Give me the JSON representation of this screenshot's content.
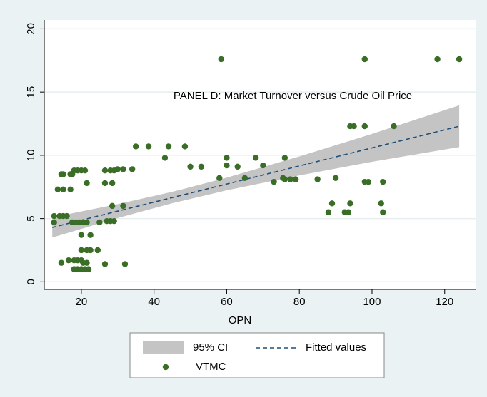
{
  "chart_data": {
    "type": "scatter",
    "annotation": "PANEL D: Market Turnover versus Crude Oil Price",
    "x_label": "OPN",
    "xlim": [
      9.8,
      128.5
    ],
    "ylim": [
      -0.6,
      20.7
    ],
    "xticks": [
      20,
      40,
      60,
      80,
      100,
      120
    ],
    "yticks": [
      0,
      5,
      10,
      15,
      20
    ],
    "grid": true,
    "series": [
      {
        "name": "95% CI",
        "kind": "band",
        "color": "#c4c4c4",
        "x": [
          12,
          30,
          45,
          60,
          80,
          100,
          124
        ],
        "upper": [
          5.1,
          6.14,
          7.11,
          8.23,
          9.91,
          11.69,
          13.95
        ],
        "lower": [
          3.5,
          5.04,
          6.21,
          7.23,
          8.41,
          9.49,
          10.65
        ]
      },
      {
        "name": "Fitted values",
        "kind": "line",
        "color": "#1f4e79",
        "x": [
          12,
          124
        ],
        "values": [
          4.3,
          12.3
        ]
      },
      {
        "name": "VTMC",
        "kind": "points",
        "color": "#3a6e26",
        "x": [
          58.5,
          98,
          118,
          124,
          94,
          95,
          98,
          106,
          35,
          38.5,
          44,
          48.5,
          43,
          60,
          68,
          76,
          50,
          53,
          60,
          63,
          70,
          30,
          31.5,
          34,
          18,
          19,
          20,
          21,
          26.5,
          28,
          29,
          14.5,
          15,
          17,
          17.5,
          58,
          65,
          75.5,
          76,
          77.5,
          79,
          85,
          90,
          73,
          98,
          99,
          103,
          21.5,
          26.5,
          28.5,
          13.5,
          15,
          17,
          89,
          94,
          102.5,
          28.5,
          31.5,
          88,
          92.5,
          93.5,
          103,
          12.5,
          14,
          15,
          16,
          27,
          28,
          29,
          25,
          12.5,
          17.5,
          18.5,
          19.5,
          20.5,
          21.5,
          20,
          22.5,
          20,
          21.5,
          22.5,
          24.5,
          16.5,
          18,
          19,
          20,
          14.5,
          20.5,
          21.5,
          26.5,
          32,
          18,
          19,
          20,
          21,
          22
        ],
        "values": [
          17.6,
          17.6,
          17.6,
          17.6,
          12.3,
          12.3,
          12.3,
          12.3,
          10.7,
          10.7,
          10.7,
          10.7,
          9.8,
          9.8,
          9.8,
          9.8,
          9.1,
          9.1,
          9.2,
          9.1,
          9.2,
          8.9,
          8.9,
          8.9,
          8.8,
          8.8,
          8.8,
          8.8,
          8.8,
          8.8,
          8.8,
          8.5,
          8.5,
          8.5,
          8.5,
          8.2,
          8.2,
          8.2,
          8.1,
          8.1,
          8.1,
          8.1,
          8.2,
          7.9,
          7.9,
          7.9,
          7.9,
          7.8,
          7.8,
          7.8,
          7.3,
          7.3,
          7.3,
          6.2,
          6.2,
          6.2,
          6.0,
          6.0,
          5.5,
          5.5,
          5.5,
          5.5,
          5.2,
          5.2,
          5.2,
          5.2,
          4.8,
          4.8,
          4.8,
          4.7,
          4.7,
          4.7,
          4.7,
          4.7,
          4.7,
          4.7,
          3.7,
          3.7,
          2.5,
          2.5,
          2.5,
          2.5,
          1.7,
          1.7,
          1.7,
          1.7,
          1.5,
          1.5,
          1.5,
          1.4,
          1.4,
          1.0,
          1.0,
          1.0,
          1.0,
          1.0
        ]
      }
    ]
  }
}
